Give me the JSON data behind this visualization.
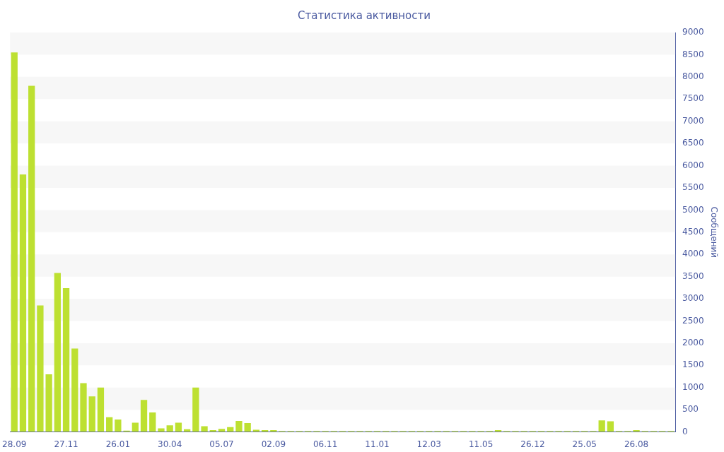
{
  "chart_data": {
    "type": "bar",
    "title": "Статистика активности",
    "ylabel": "Сообщений",
    "categories": [
      "28.09",
      null,
      null,
      null,
      null,
      null,
      "27.11",
      null,
      null,
      null,
      null,
      null,
      "26.01",
      null,
      null,
      null,
      null,
      null,
      "30.04",
      null,
      null,
      null,
      null,
      null,
      "05.07",
      null,
      null,
      null,
      null,
      null,
      "02.09",
      null,
      null,
      null,
      null,
      null,
      "06.11",
      null,
      null,
      null,
      null,
      null,
      "11.01",
      null,
      null,
      null,
      null,
      null,
      "12.03",
      null,
      null,
      null,
      null,
      null,
      "11.05",
      null,
      null,
      null,
      null,
      null,
      "26.12",
      null,
      null,
      null,
      null,
      null,
      "25.05",
      null,
      null,
      null,
      null,
      null,
      "26.08",
      null,
      null,
      null,
      null
    ],
    "values": [
      8550,
      5800,
      7800,
      2850,
      1300,
      3580,
      3240,
      1880,
      1100,
      800,
      1000,
      330,
      280,
      30,
      210,
      720,
      440,
      80,
      150,
      210,
      60,
      1000,
      130,
      40,
      70,
      110,
      250,
      200,
      50,
      40,
      40,
      20,
      20,
      20,
      20,
      20,
      20,
      20,
      20,
      20,
      20,
      20,
      20,
      20,
      20,
      20,
      20,
      20,
      20,
      20,
      20,
      20,
      20,
      20,
      20,
      20,
      40,
      20,
      20,
      20,
      20,
      20,
      20,
      20,
      20,
      20,
      20,
      20,
      260,
      240,
      20,
      20,
      40,
      20,
      20,
      20,
      20
    ],
    "color": "#bde031",
    "ylim": [
      0,
      9000
    ],
    "yticks": [
      0,
      500,
      1000,
      1500,
      2000,
      2500,
      3000,
      3500,
      4000,
      4500,
      5000,
      5500,
      6000,
      6500,
      7000,
      7500,
      8000,
      8500,
      9000
    ]
  }
}
